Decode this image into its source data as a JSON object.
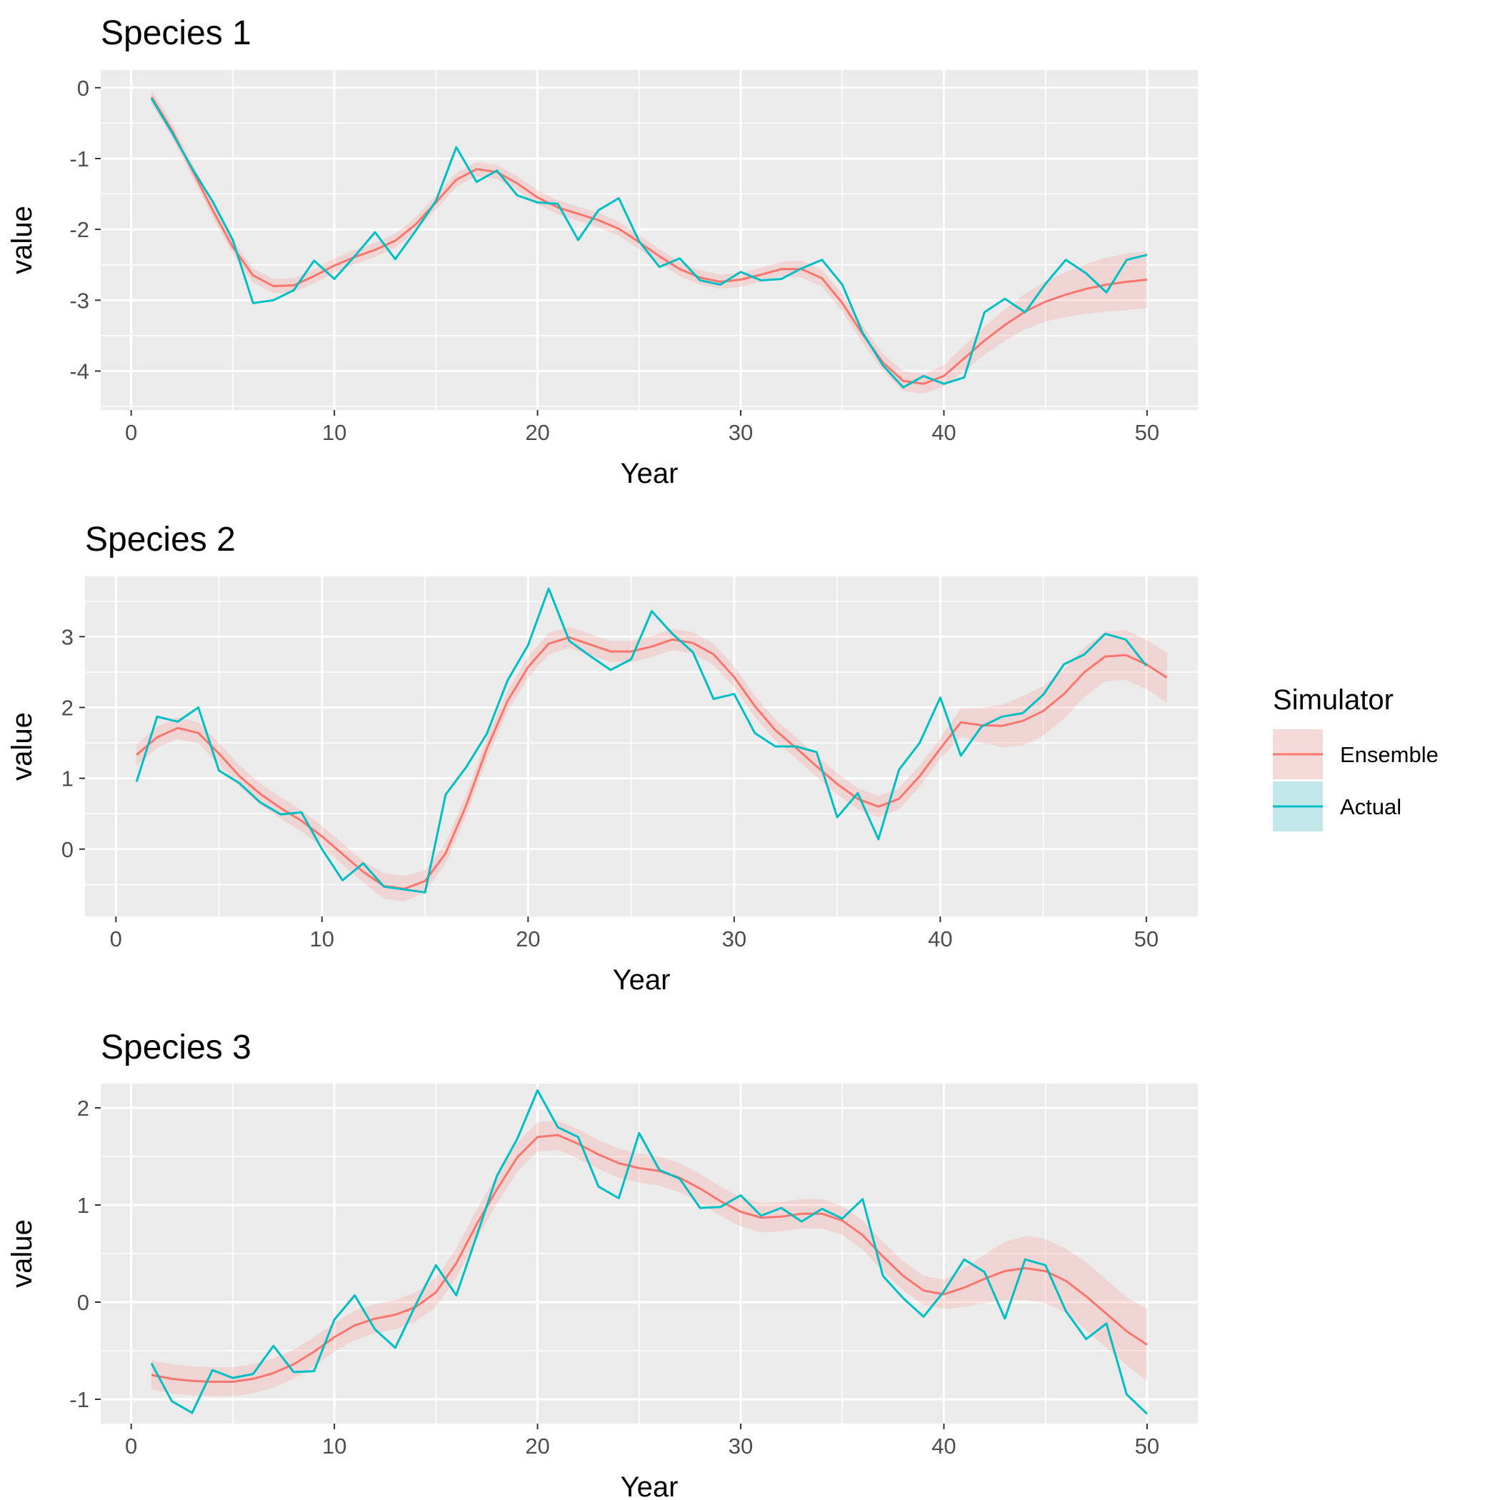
{
  "chart_data": [
    {
      "type": "line",
      "title": "Species 1",
      "xlabel": "Year",
      "ylabel": "value",
      "xlim": [
        -1.5,
        52.5
      ],
      "ylim": [
        -4.55,
        0.25
      ],
      "xticks": [
        0,
        10,
        20,
        30,
        40,
        50
      ],
      "yticks": [
        0,
        -1,
        -2,
        -3,
        -4
      ],
      "xticklabels": [
        "0",
        "10",
        "20",
        "30",
        "40",
        "50"
      ],
      "yticklabels": [
        "0",
        "-1",
        "-2",
        "-3",
        "-4"
      ],
      "ensemble": [
        -0.13,
        -0.6,
        -1.16,
        -1.72,
        -2.25,
        -2.65,
        -2.8,
        -2.79,
        -2.66,
        -2.51,
        -2.39,
        -2.29,
        -2.16,
        -1.93,
        -1.62,
        -1.3,
        -1.15,
        -1.19,
        -1.35,
        -1.55,
        -1.69,
        -1.78,
        -1.87,
        -1.99,
        -2.18,
        -2.38,
        -2.56,
        -2.68,
        -2.74,
        -2.71,
        -2.64,
        -2.56,
        -2.56,
        -2.69,
        -3.04,
        -3.48,
        -3.88,
        -4.14,
        -4.18,
        -4.07,
        -3.82,
        -3.57,
        -3.35,
        -3.16,
        -3.02,
        -2.92,
        -2.84,
        -2.78,
        -2.74,
        -2.71
      ],
      "ribbon_halfwidth": [
        0.1,
        0.1,
        0.1,
        0.1,
        0.1,
        0.1,
        0.1,
        0.1,
        0.1,
        0.1,
        0.1,
        0.1,
        0.1,
        0.1,
        0.1,
        0.1,
        0.1,
        0.1,
        0.1,
        0.1,
        0.1,
        0.1,
        0.1,
        0.1,
        0.1,
        0.1,
        0.1,
        0.1,
        0.1,
        0.1,
        0.1,
        0.1,
        0.12,
        0.12,
        0.12,
        0.12,
        0.12,
        0.14,
        0.14,
        0.15,
        0.18,
        0.2,
        0.22,
        0.25,
        0.28,
        0.32,
        0.35,
        0.38,
        0.4,
        0.4
      ],
      "actual": [
        -0.15,
        -0.63,
        -1.14,
        -1.6,
        -2.15,
        -3.04,
        -3.0,
        -2.86,
        -2.44,
        -2.7,
        -2.38,
        -2.04,
        -2.42,
        -2.02,
        -1.6,
        -0.84,
        -1.33,
        -1.17,
        -1.52,
        -1.62,
        -1.64,
        -2.15,
        -1.73,
        -1.56,
        -2.17,
        -2.53,
        -2.41,
        -2.72,
        -2.78,
        -2.6,
        -2.72,
        -2.7,
        -2.55,
        -2.43,
        -2.78,
        -3.46,
        -3.92,
        -4.23,
        -4.07,
        -4.18,
        -4.09,
        -3.17,
        -2.98,
        -3.17,
        -2.77,
        -2.43,
        -2.62,
        -2.89,
        -2.43,
        -2.36
      ]
    },
    {
      "type": "line",
      "title": "Species 2",
      "xlabel": "Year",
      "ylabel": "value",
      "xlim": [
        -1.5,
        52.5
      ],
      "ylim": [
        -0.95,
        3.85
      ],
      "xticks": [
        0,
        10,
        20,
        30,
        40,
        50
      ],
      "yticks": [
        0,
        1,
        2,
        3
      ],
      "xticklabels": [
        "0",
        "10",
        "20",
        "30",
        "40",
        "50"
      ],
      "yticklabels": [
        "0",
        "1",
        "2",
        "3"
      ],
      "ensemble": [
        1.33,
        1.58,
        1.71,
        1.64,
        1.35,
        1.03,
        0.78,
        0.58,
        0.4,
        0.18,
        -0.07,
        -0.32,
        -0.52,
        -0.56,
        -0.45,
        -0.06,
        0.62,
        1.42,
        2.09,
        2.57,
        2.9,
        2.99,
        2.89,
        2.79,
        2.79,
        2.86,
        2.96,
        2.91,
        2.75,
        2.43,
        2.02,
        1.68,
        1.43,
        1.17,
        0.92,
        0.71,
        0.6,
        0.71,
        1.03,
        1.42,
        1.79,
        1.75,
        1.74,
        1.81,
        1.95,
        2.19,
        2.5,
        2.72,
        2.74,
        2.61,
        2.42
      ],
      "ribbon_halfwidth": [
        0.15,
        0.15,
        0.15,
        0.15,
        0.15,
        0.15,
        0.15,
        0.15,
        0.15,
        0.15,
        0.15,
        0.15,
        0.18,
        0.18,
        0.15,
        0.15,
        0.15,
        0.15,
        0.15,
        0.15,
        0.15,
        0.15,
        0.15,
        0.15,
        0.15,
        0.15,
        0.15,
        0.15,
        0.15,
        0.15,
        0.15,
        0.15,
        0.15,
        0.15,
        0.15,
        0.15,
        0.15,
        0.15,
        0.15,
        0.15,
        0.2,
        0.25,
        0.3,
        0.35,
        0.35,
        0.35,
        0.35,
        0.35,
        0.35,
        0.35,
        0.35
      ],
      "actual_x": [
        1,
        2,
        3,
        4,
        5,
        6,
        7,
        8,
        9,
        10,
        11,
        12,
        13,
        14,
        15,
        16,
        17,
        18,
        19,
        20,
        21,
        22,
        23,
        24,
        25,
        26,
        27,
        28,
        29,
        30,
        31,
        32,
        33,
        34,
        35,
        36,
        37,
        38,
        39,
        40,
        41,
        42,
        43,
        44,
        45,
        46,
        47,
        48,
        49,
        50
      ],
      "actual": [
        0.95,
        1.87,
        1.8,
        2.0,
        1.11,
        0.93,
        0.66,
        0.49,
        0.52,
        0.0,
        -0.44,
        -0.2,
        -0.53,
        -0.57,
        -0.61,
        0.77,
        1.16,
        1.63,
        2.38,
        2.88,
        3.68,
        2.94,
        2.73,
        2.53,
        2.68,
        3.36,
        3.04,
        2.78,
        2.12,
        2.19,
        1.64,
        1.45,
        1.45,
        1.37,
        0.45,
        0.79,
        0.14,
        1.12,
        1.5,
        2.14,
        1.32,
        1.73,
        1.87,
        1.92,
        2.18,
        2.61,
        2.75,
        3.04,
        2.96,
        2.59
      ]
    },
    {
      "type": "line",
      "title": "Species 3",
      "xlabel": "Year",
      "ylabel": "value",
      "xlim": [
        -1.5,
        52.5
      ],
      "ylim": [
        -1.25,
        2.25
      ],
      "xticks": [
        0,
        10,
        20,
        30,
        40,
        50
      ],
      "yticks": [
        2,
        1,
        0,
        -1
      ],
      "xticklabels": [
        "0",
        "10",
        "20",
        "30",
        "40",
        "50"
      ],
      "yticklabels": [
        "2",
        "1",
        "0",
        "-1"
      ],
      "ensemble": [
        -0.75,
        -0.79,
        -0.81,
        -0.82,
        -0.82,
        -0.79,
        -0.73,
        -0.64,
        -0.51,
        -0.36,
        -0.24,
        -0.17,
        -0.13,
        -0.05,
        0.1,
        0.4,
        0.8,
        1.16,
        1.49,
        1.7,
        1.72,
        1.63,
        1.52,
        1.43,
        1.38,
        1.35,
        1.28,
        1.17,
        1.04,
        0.93,
        0.87,
        0.88,
        0.91,
        0.91,
        0.84,
        0.69,
        0.47,
        0.27,
        0.12,
        0.08,
        0.15,
        0.24,
        0.32,
        0.35,
        0.32,
        0.22,
        0.06,
        -0.12,
        -0.3,
        -0.44
      ],
      "ribbon_halfwidth": [
        0.15,
        0.15,
        0.15,
        0.15,
        0.15,
        0.15,
        0.15,
        0.15,
        0.15,
        0.15,
        0.15,
        0.15,
        0.15,
        0.15,
        0.15,
        0.15,
        0.15,
        0.15,
        0.15,
        0.15,
        0.15,
        0.15,
        0.15,
        0.15,
        0.15,
        0.15,
        0.15,
        0.15,
        0.15,
        0.15,
        0.15,
        0.15,
        0.15,
        0.15,
        0.15,
        0.15,
        0.15,
        0.15,
        0.15,
        0.15,
        0.2,
        0.25,
        0.3,
        0.33,
        0.33,
        0.33,
        0.35,
        0.35,
        0.35,
        0.37
      ],
      "actual": [
        -0.63,
        -1.02,
        -1.14,
        -0.7,
        -0.78,
        -0.74,
        -0.45,
        -0.72,
        -0.71,
        -0.18,
        0.07,
        -0.28,
        -0.47,
        -0.03,
        0.38,
        0.07,
        0.68,
        1.3,
        1.68,
        2.18,
        1.8,
        1.7,
        1.19,
        1.07,
        1.74,
        1.36,
        1.27,
        0.97,
        0.98,
        1.1,
        0.89,
        0.97,
        0.83,
        0.96,
        0.86,
        1.06,
        0.27,
        0.04,
        -0.15,
        0.11,
        0.44,
        0.31,
        -0.17,
        0.44,
        0.38,
        -0.09,
        -0.38,
        -0.22,
        -0.95,
        -1.15
      ]
    }
  ],
  "legend": {
    "title": "Simulator",
    "items": [
      "Ensemble",
      "Actual"
    ]
  },
  "colors": {
    "ensemble": "#F8766D",
    "actual": "#00BFC4",
    "panel_bg": "#EBEBEB",
    "ribbon": "#F8766D"
  }
}
